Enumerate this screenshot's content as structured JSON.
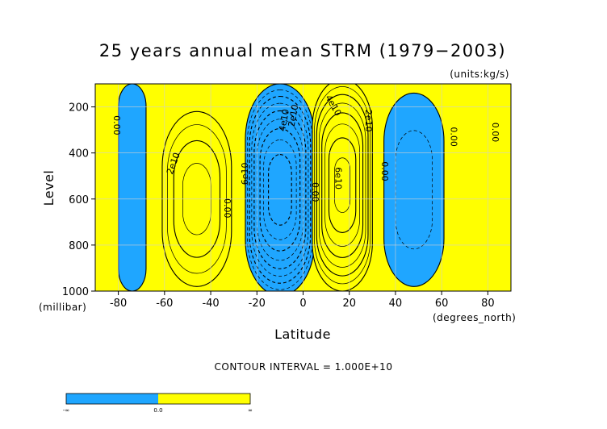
{
  "chart_data": {
    "type": "contour",
    "title": "25 years annual mean STRM (1979−2003)",
    "units_label": "(units:kg/s)",
    "xlabel": "Latitude",
    "ylabel": "Level",
    "x_units_label": "(degrees_north)",
    "y_units_label": "(millibar)",
    "xlim": [
      -90,
      90
    ],
    "ylim": [
      1000,
      100
    ],
    "x_ticks": [
      {
        "value": -80,
        "label": "-80"
      },
      {
        "value": -60,
        "label": "-60"
      },
      {
        "value": -40,
        "label": "-40"
      },
      {
        "value": -20,
        "label": "-20"
      },
      {
        "value": 0,
        "label": "0"
      },
      {
        "value": 20,
        "label": "20"
      },
      {
        "value": 40,
        "label": "40"
      },
      {
        "value": 60,
        "label": "60"
      },
      {
        "value": 80,
        "label": "80"
      }
    ],
    "y_ticks": [
      {
        "value": 200,
        "label": "200"
      },
      {
        "value": 400,
        "label": "400"
      },
      {
        "value": 600,
        "label": "600"
      },
      {
        "value": 800,
        "label": "800"
      },
      {
        "value": 1000,
        "label": "1000"
      }
    ],
    "grid": true,
    "contour_interval_text": "CONTOUR INTERVAL = 1.000E+10",
    "contour_interval": 10000000000.0,
    "positive_color": "#ffff00",
    "negative_color": "#1fa6ff",
    "cells": [
      {
        "name": "high-lat-south",
        "sign": "neg",
        "center": [
          -74,
          550
        ],
        "half": [
          6,
          450
        ],
        "max": 4000000000.0
      },
      {
        "name": "ferrel-south",
        "sign": "pos",
        "center": [
          -46,
          600
        ],
        "half": [
          15,
          380
        ],
        "max": 36000000000.0
      },
      {
        "name": "hadley-south",
        "sign": "neg",
        "center": [
          -10,
          560
        ],
        "half": [
          15,
          460
        ],
        "max": 90000000000.0
      },
      {
        "name": "hadley-north",
        "sign": "pos",
        "center": [
          17,
          540
        ],
        "half": [
          13,
          460
        ],
        "max": 75000000000.0
      },
      {
        "name": "ferrel-north",
        "sign": "neg",
        "center": [
          48,
          560
        ],
        "half": [
          13,
          420
        ],
        "max": 16000000000.0
      }
    ],
    "contour_labels": [
      {
        "text": "0.00",
        "lat": -82,
        "lev": 280,
        "rotate": 90
      },
      {
        "text": "2e10",
        "lat": -55,
        "lev": 450,
        "rotate": -70
      },
      {
        "text": "0.00",
        "lat": -34,
        "lev": 640,
        "rotate": 90
      },
      {
        "text": "6e10",
        "lat": -24,
        "lev": 490,
        "rotate": -90
      },
      {
        "text": "4e10",
        "lat": -7,
        "lev": 260,
        "rotate": -80
      },
      {
        "text": "2e10",
        "lat": -3,
        "lev": 240,
        "rotate": -80
      },
      {
        "text": "0.00",
        "lat": 4,
        "lev": 570,
        "rotate": 90
      },
      {
        "text": "4e10",
        "lat": 12,
        "lev": 200,
        "rotate": 60
      },
      {
        "text": "2e10",
        "lat": 27,
        "lev": 260,
        "rotate": 90
      },
      {
        "text": "6e10",
        "lat": 14,
        "lev": 510,
        "rotate": 90
      },
      {
        "text": "0.00",
        "lat": 34,
        "lev": 480,
        "rotate": 90
      },
      {
        "text": "0.00",
        "lat": 64,
        "lev": 330,
        "rotate": 90
      },
      {
        "text": "0.00",
        "lat": 82,
        "lev": 310,
        "rotate": 90
      }
    ],
    "colorbar": {
      "labels": [
        "-∞",
        "0.0",
        "∞"
      ]
    }
  }
}
